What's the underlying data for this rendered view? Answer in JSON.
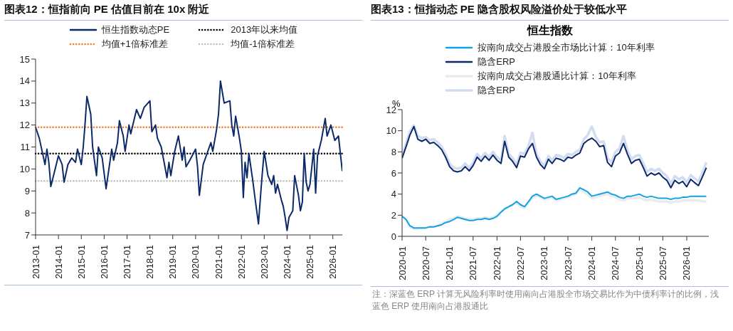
{
  "chart_data": [
    {
      "type": "line",
      "title": "图表12：恒指前向 PE 估值目前在 10x 附近",
      "legend": "top",
      "x": [
        "2013-01",
        "2013-03",
        "2013-05",
        "2013-06",
        "2013-07",
        "2013-08",
        "2013-09",
        "2013-11",
        "2014-01",
        "2014-03",
        "2014-04",
        "2014-06",
        "2014-08",
        "2014-10",
        "2014-11",
        "2015-01",
        "2015-02",
        "2015-03",
        "2015-04",
        "2015-06",
        "2015-07",
        "2015-09",
        "2015-10",
        "2015-12",
        "2016-02",
        "2016-04",
        "2016-05",
        "2016-06",
        "2016-08",
        "2016-09",
        "2016-11",
        "2016-12",
        "2017-02",
        "2017-03",
        "2017-06",
        "2017-08",
        "2017-10",
        "2018-01",
        "2018-02",
        "2018-04",
        "2018-05",
        "2018-07",
        "2018-10",
        "2018-11",
        "2018-12",
        "2019-02",
        "2019-04",
        "2019-06",
        "2019-07",
        "2019-08",
        "2019-10",
        "2020-01",
        "2020-02",
        "2020-03",
        "2020-05",
        "2020-07",
        "2020-09",
        "2020-10",
        "2020-12",
        "2021-01",
        "2021-02",
        "2021-04",
        "2021-07",
        "2021-08",
        "2021-09",
        "2021-10",
        "2021-11",
        "2021-12",
        "2022-01",
        "2022-02",
        "2022-03",
        "2022-04",
        "2022-05",
        "2022-07",
        "2022-08",
        "2022-10",
        "2022-11",
        "2022-12",
        "2023-01",
        "2023-03",
        "2023-05",
        "2023-06",
        "2023-07",
        "2023-08",
        "2023-10",
        "2023-11",
        "2023-12",
        "2024-01",
        "2024-02",
        "2024-04",
        "2024-05",
        "2024-07",
        "2024-08",
        "2024-09",
        "2024-10",
        "2024-11",
        "2024-12",
        "2025-01",
        "2025-03",
        "2025-04",
        "2025-05",
        "2025-07",
        "2025-09",
        "2025-10",
        "2025-12",
        "2026-02",
        "2026-04",
        "2026-05",
        "2026-06"
      ],
      "series": [
        {
          "name": "恒生指数动态PE",
          "color": "#0c2a6a",
          "values": [
            11.9,
            11.4,
            10.6,
            10.2,
            10.9,
            10.3,
            9.2,
            9.9,
            10.6,
            10.2,
            9.4,
            10.2,
            10.5,
            10.3,
            10.9,
            10.2,
            11.0,
            12.0,
            13.3,
            12.5,
            11.0,
            9.7,
            11.0,
            10.5,
            9.1,
            10.3,
            10.9,
            10.4,
            11.2,
            12.2,
            11.5,
            10.8,
            12.0,
            11.6,
            12.7,
            12.3,
            12.8,
            13.1,
            11.7,
            12.0,
            11.4,
            11.0,
            9.6,
            10.3,
            9.7,
            10.8,
            11.5,
            10.4,
            11.0,
            10.1,
            10.4,
            10.9,
            10.1,
            8.8,
            10.2,
            10.7,
            11.2,
            10.8,
            11.8,
            12.5,
            14.0,
            13.0,
            13.1,
            12.0,
            11.5,
            12.4,
            11.9,
            11.4,
            10.8,
            8.7,
            10.3,
            9.6,
            10.7,
            9.5,
            8.8,
            7.5,
            8.7,
            9.8,
            10.8,
            9.7,
            9.3,
            9.7,
            8.9,
            9.3,
            8.6,
            8.3,
            7.8,
            7.2,
            7.8,
            8.1,
            9.7,
            8.8,
            8.1,
            8.5,
            10.7,
            9.4,
            9.0,
            9.3,
            10.9,
            8.9,
            10.6,
            11.3,
            12.3,
            11.5,
            12.0,
            11.3,
            11.5,
            10.7,
            9.9
          ]
        }
      ],
      "ref_lines": [
        {
          "axis": "y",
          "value": 10.7,
          "label": "2013年以来均值",
          "color": "#000000",
          "line_style": "dotted"
        },
        {
          "axis": "y",
          "value": 11.9,
          "label": "均值+1倍标准差",
          "color": "#f07f2f",
          "line_style": "dotted"
        },
        {
          "axis": "y",
          "value": 9.45,
          "label": "均值-1倍标准差",
          "color": "#bfbfbf",
          "line_style": "dotted"
        }
      ],
      "xlim": [
        "2013-01",
        "2026-06"
      ],
      "xticks": [
        "2013-01",
        "2014-01",
        "2015-01",
        "2016-01",
        "2017-01",
        "2018-01",
        "2019-01",
        "2020-01",
        "2021-01",
        "2022-01",
        "2023-01",
        "2024-01",
        "2025-01",
        "2026-01"
      ],
      "ylim": [
        7,
        15
      ],
      "yticks": [
        7,
        8,
        9,
        10,
        11,
        12,
        13,
        14,
        15
      ]
    },
    {
      "type": "line",
      "title": "图表13：恒指动态 PE 隐含股权风险溢价处于较低水平",
      "subtitle": "恒生指数",
      "ylabel": "%",
      "legend": "top",
      "annotations": [
        "注：深蓝色 ERP 计算无风险利率时使用南向占港股全市场交易比作为中债利率计的比例，浅蓝色 ERP 使用南向占港股通比"
      ],
      "x": [
        "2020-01",
        "2020-02",
        "2020-03",
        "2020-04",
        "2020-05",
        "2020-06",
        "2020-07",
        "2020-08",
        "2020-09",
        "2020-10",
        "2020-11",
        "2020-12",
        "2021-01",
        "2021-02",
        "2021-03",
        "2021-04",
        "2021-05",
        "2021-06",
        "2021-07",
        "2021-08",
        "2021-09",
        "2021-10",
        "2021-11",
        "2021-12",
        "2022-01",
        "2022-02",
        "2022-03",
        "2022-04",
        "2022-05",
        "2022-06",
        "2022-07",
        "2022-08",
        "2022-09",
        "2022-10",
        "2022-11",
        "2022-12",
        "2023-01",
        "2023-02",
        "2023-03",
        "2023-04",
        "2023-05",
        "2023-06",
        "2023-07",
        "2023-08",
        "2023-09",
        "2023-10",
        "2023-11",
        "2023-12",
        "2024-01",
        "2024-02",
        "2024-03",
        "2024-04",
        "2024-05",
        "2024-06",
        "2024-07",
        "2024-08",
        "2024-09",
        "2024-10",
        "2024-11",
        "2024-12",
        "2025-01",
        "2025-02",
        "2025-03",
        "2025-04",
        "2025-05",
        "2025-06",
        "2025-07",
        "2025-08",
        "2025-09",
        "2025-10",
        "2025-11",
        "2025-12",
        "2026-01",
        "2026-02",
        "2026-03",
        "2026-04",
        "2026-05",
        "2026-06"
      ],
      "series": [
        {
          "name": "按南向成交占港股全市场比计算：10年利率",
          "color": "#12a3e6",
          "values": [
            1.9,
            1.6,
            1.0,
            0.8,
            0.8,
            0.8,
            0.8,
            0.9,
            0.9,
            1.0,
            1.1,
            1.3,
            1.4,
            1.6,
            1.8,
            1.7,
            1.6,
            1.5,
            1.5,
            1.6,
            1.6,
            1.7,
            1.6,
            1.7,
            1.9,
            2.3,
            2.6,
            2.8,
            3.0,
            3.3,
            3.0,
            2.8,
            3.3,
            3.8,
            4.0,
            3.8,
            3.6,
            3.7,
            3.8,
            3.5,
            3.6,
            3.7,
            3.8,
            4.0,
            4.1,
            4.6,
            4.4,
            4.2,
            3.8,
            3.9,
            4.0,
            4.1,
            4.2,
            4.0,
            3.9,
            3.7,
            3.6,
            3.8,
            3.8,
            3.9,
            4.0,
            3.8,
            3.7,
            3.8,
            3.7,
            3.6,
            3.6,
            3.6,
            3.5,
            3.6,
            3.6,
            3.7,
            3.7,
            3.8,
            3.8,
            3.8,
            3.8,
            3.8
          ]
        },
        {
          "name": "隐含ERP",
          "color": "#0c2a6a",
          "values": [
            7.4,
            8.5,
            9.6,
            10.4,
            9.2,
            9.0,
            9.2,
            8.8,
            8.9,
            8.6,
            8.2,
            7.5,
            6.6,
            6.2,
            6.1,
            6.2,
            6.6,
            6.2,
            6.7,
            7.5,
            7.1,
            7.6,
            7.2,
            7.7,
            7.2,
            6.9,
            9.0,
            7.5,
            7.1,
            6.5,
            7.6,
            7.5,
            8.3,
            8.8,
            7.5,
            6.8,
            6.4,
            7.3,
            6.9,
            7.4,
            7.3,
            7.1,
            7.5,
            7.4,
            7.7,
            7.9,
            8.8,
            9.1,
            9.3,
            9.0,
            8.5,
            8.6,
            7.0,
            6.6,
            7.6,
            7.9,
            8.8,
            7.8,
            6.9,
            7.2,
            7.3,
            6.5,
            5.7,
            6.0,
            5.8,
            6.0,
            5.6,
            5.3,
            4.6,
            5.3,
            5.0,
            5.2,
            4.7,
            5.4,
            5.1,
            4.8,
            5.6,
            6.5
          ]
        },
        {
          "name": "按南向成交占港股通比计算：10年利率",
          "color": "#ebebeb",
          "values": [
            1.9,
            1.5,
            0.9,
            0.7,
            0.7,
            0.8,
            0.8,
            0.9,
            0.9,
            1.0,
            1.2,
            1.4,
            1.6,
            1.7,
            1.9,
            1.8,
            1.7,
            1.6,
            1.6,
            1.7,
            1.7,
            1.8,
            1.7,
            1.8,
            2.0,
            2.3,
            2.6,
            2.8,
            3.0,
            3.2,
            2.8,
            2.7,
            3.2,
            3.7,
            3.9,
            3.7,
            3.5,
            3.6,
            3.7,
            3.4,
            3.5,
            3.6,
            3.7,
            3.9,
            4.0,
            4.5,
            4.2,
            4.0,
            3.6,
            3.7,
            3.8,
            3.9,
            4.0,
            3.8,
            3.7,
            3.5,
            3.4,
            3.6,
            3.6,
            3.6,
            3.7,
            3.5,
            3.4,
            3.5,
            3.4,
            3.3,
            3.3,
            3.3,
            3.2,
            3.3,
            3.3,
            3.4,
            3.4,
            3.4,
            3.4,
            3.4,
            3.3,
            3.3
          ]
        },
        {
          "name": "隐含ERP",
          "color": "#d3dcf0",
          "values": [
            7.6,
            8.8,
            9.9,
            10.5,
            9.5,
            9.3,
            9.4,
            9.1,
            9.2,
            8.9,
            8.5,
            7.8,
            6.9,
            6.5,
            6.4,
            6.5,
            6.9,
            6.5,
            7.0,
            7.8,
            7.4,
            7.9,
            7.5,
            8.0,
            7.5,
            7.2,
            9.5,
            7.8,
            7.4,
            6.8,
            7.9,
            7.8,
            8.6,
            9.8,
            7.8,
            7.1,
            6.7,
            7.6,
            7.2,
            7.7,
            7.6,
            7.4,
            7.8,
            7.7,
            8.0,
            8.2,
            9.2,
            9.6,
            10.4,
            9.4,
            8.9,
            9.0,
            7.4,
            7.0,
            8.0,
            8.3,
            9.5,
            8.2,
            7.3,
            7.6,
            7.7,
            6.9,
            6.1,
            6.4,
            6.2,
            6.4,
            6.0,
            5.7,
            5.0,
            5.7,
            5.4,
            5.6,
            5.1,
            5.8,
            5.5,
            5.2,
            6.0,
            7.0
          ]
        }
      ],
      "xlim": [
        "2020-01",
        "2026-06-20"
      ],
      "xticks": [
        "2020-01",
        "2020-07",
        "2021-01",
        "2021-07",
        "2022-01",
        "2022-07",
        "2023-01",
        "2023-07",
        "2024-01",
        "2024-07",
        "2025-01",
        "2025-07",
        "2026-01"
      ],
      "ylim": [
        0,
        12
      ],
      "yticks": [
        0,
        2,
        4,
        6,
        8,
        10,
        12
      ]
    }
  ]
}
